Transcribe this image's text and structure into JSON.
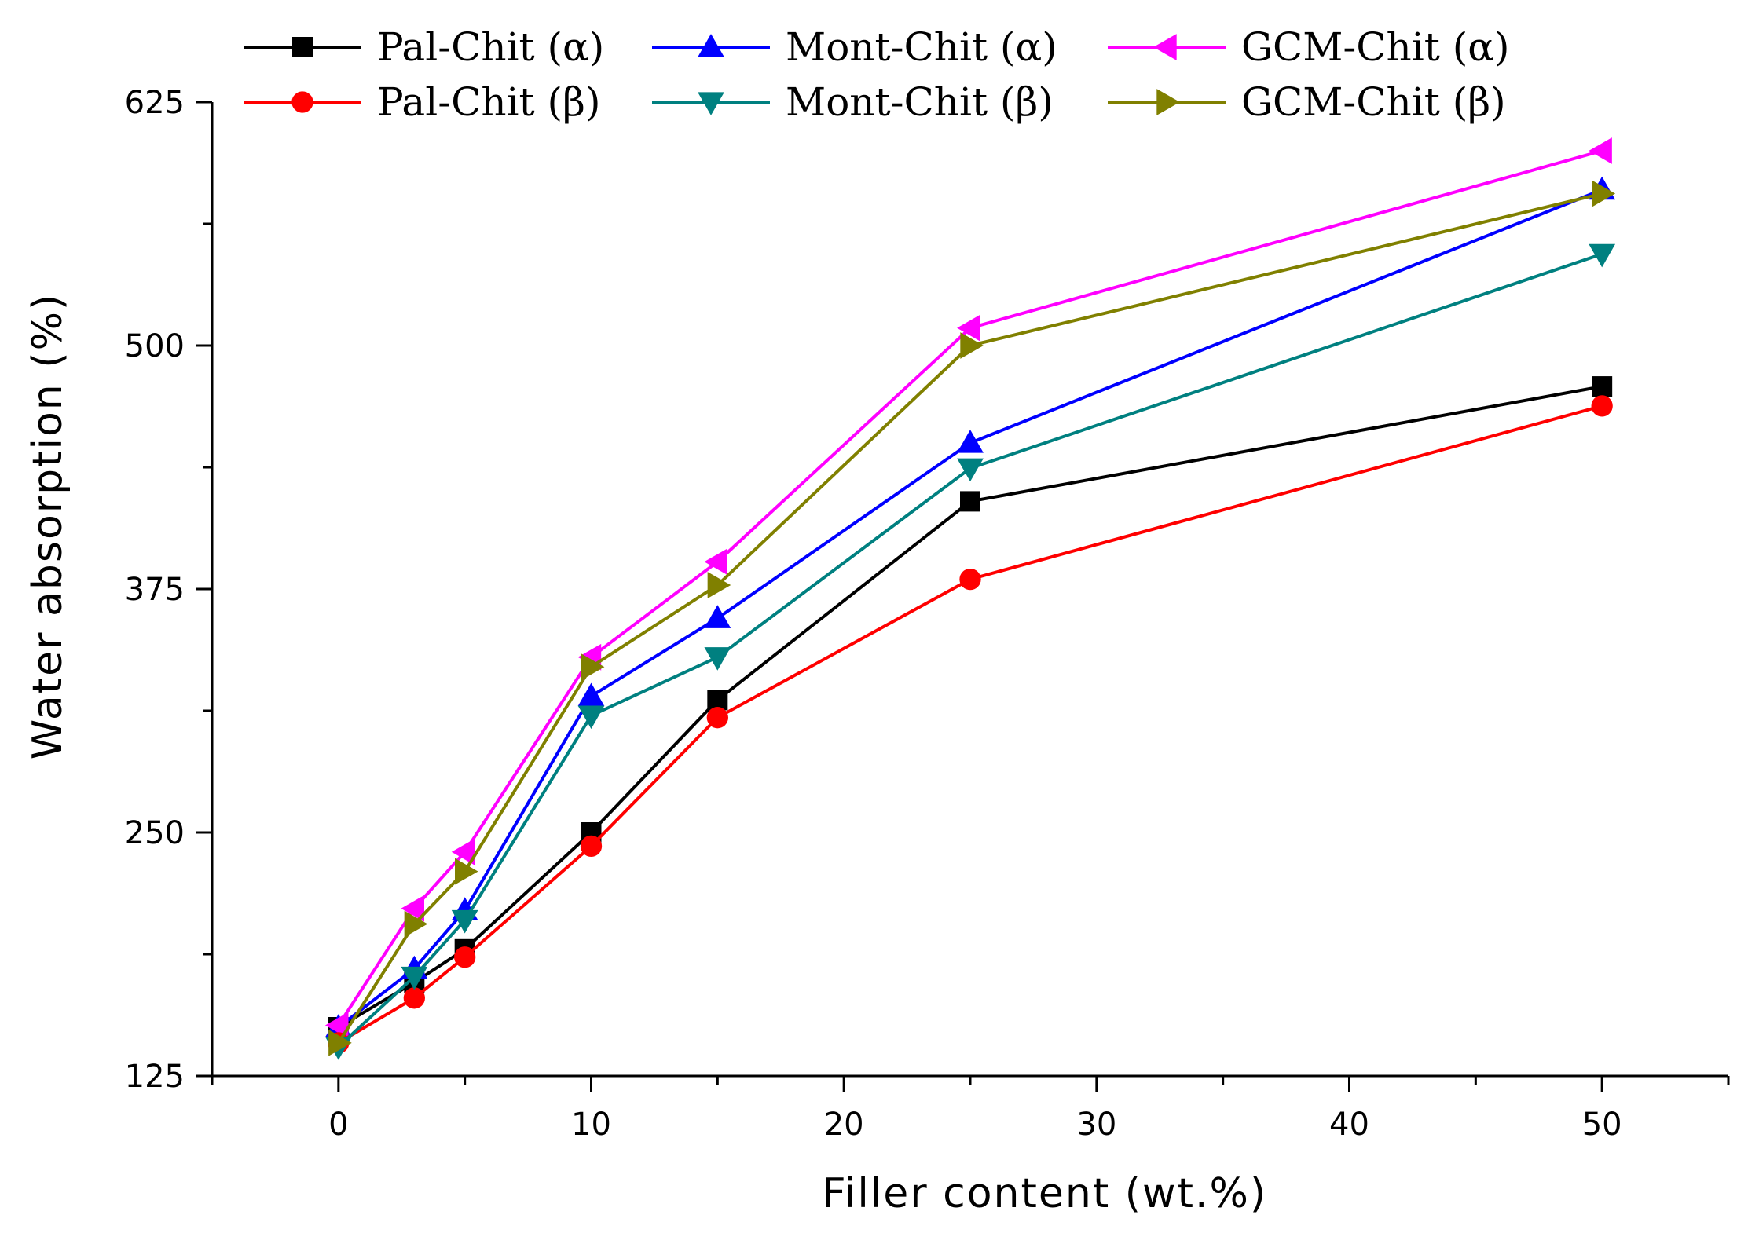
{
  "chart_data": {
    "type": "line",
    "title": "",
    "xlabel": "Filler content (wt.%)",
    "ylabel": "Water absorption (%)",
    "xlim": [
      -5,
      55
    ],
    "ylim": [
      125,
      625
    ],
    "xticks": [
      0,
      10,
      20,
      30,
      40,
      50
    ],
    "yticks": [
      125,
      250,
      375,
      500,
      625
    ],
    "x": [
      0,
      3,
      5,
      10,
      15,
      25,
      50
    ],
    "legend_position": "top",
    "series": [
      {
        "name": "Pal-Chit (α)",
        "color": "#000000",
        "marker": "square",
        "values": [
          150,
          173,
          190,
          250,
          318,
          420,
          479
        ]
      },
      {
        "name": "Mont-Chit (α)",
        "color": "#0000ff",
        "marker": "triangle-up",
        "values": [
          150,
          180,
          210,
          320,
          360,
          450,
          580
        ]
      },
      {
        "name": "GCM-Chit (α)",
        "color": "#ff00ff",
        "marker": "triangle-left",
        "values": [
          151,
          211,
          240,
          340,
          389,
          509,
          600
        ]
      },
      {
        "name": "Pal-Chit (β)",
        "color": "#ff0000",
        "marker": "circle",
        "values": [
          142,
          165,
          186,
          243,
          309,
          380,
          469
        ]
      },
      {
        "name": "Mont-Chit (β)",
        "color": "#008080",
        "marker": "triangle-down",
        "values": [
          140,
          176,
          205,
          310,
          340,
          437,
          547
        ]
      },
      {
        "name": "GCM-Chit (β)",
        "color": "#808000",
        "marker": "triangle-right",
        "values": [
          142,
          203,
          230,
          335,
          377,
          500,
          578
        ]
      }
    ]
  }
}
